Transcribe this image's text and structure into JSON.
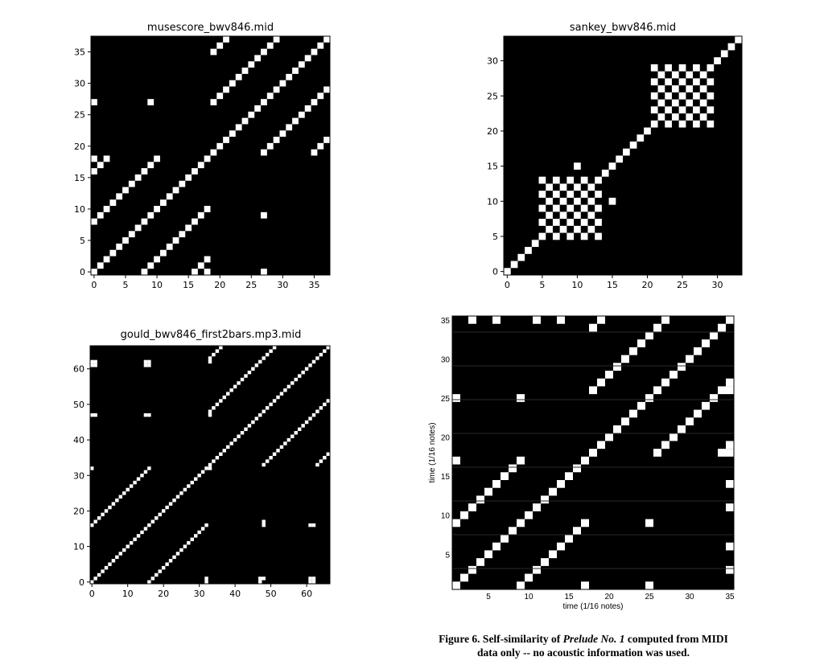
{
  "chart_data": [
    {
      "type": "heatmap",
      "title": "musescore_bwv846.mid",
      "size": 38,
      "xlim": [
        -0.5,
        37.5
      ],
      "ylim": [
        -0.5,
        37.5
      ],
      "xticks": [
        0,
        5,
        10,
        15,
        20,
        25,
        30,
        35
      ],
      "yticks": [
        0,
        5,
        10,
        15,
        20,
        25,
        30,
        35
      ],
      "colors": {
        "cell": "#ffffff",
        "background": "#000000"
      },
      "rules": {
        "diagonal": true,
        "blocks": [
          [
            0,
            18,
            8
          ],
          [
            19,
            37,
            8
          ]
        ],
        "extra": [
          [
            0,
            18
          ],
          [
            18,
            0
          ],
          [
            0,
            27
          ],
          [
            27,
            0
          ],
          [
            9,
            27
          ],
          [
            27,
            9
          ]
        ]
      }
    },
    {
      "type": "heatmap",
      "title": "sankey_bwv846.mid",
      "size": 34,
      "xlim": [
        -0.5,
        33.5
      ],
      "ylim": [
        -0.5,
        33.5
      ],
      "xticks": [
        0,
        5,
        10,
        15,
        20,
        25,
        30
      ],
      "yticks": [
        0,
        5,
        10,
        15,
        20,
        25,
        30
      ],
      "colors": {
        "cell": "#ffffff",
        "background": "#000000"
      },
      "rules": {
        "diagonal": true,
        "blocks": [
          [
            5,
            13,
            2
          ],
          [
            21,
            29,
            2
          ]
        ],
        "extra": [
          [
            10,
            15
          ],
          [
            15,
            10
          ],
          [
            10,
            8
          ],
          [
            8,
            10
          ]
        ]
      }
    },
    {
      "type": "heatmap",
      "title": "gould_bwv846_first2bars.mp3.mid",
      "size": 67,
      "xlim": [
        -0.5,
        66.5
      ],
      "ylim": [
        -0.5,
        66.5
      ],
      "xticks": [
        0,
        10,
        20,
        30,
        40,
        50,
        60
      ],
      "yticks": [
        0,
        10,
        20,
        30,
        40,
        50,
        60
      ],
      "colors": {
        "cell": "#ffffff",
        "background": "#000000"
      },
      "rules": {
        "diagonal": true,
        "blocks": [
          [
            0,
            32,
            16
          ],
          [
            33,
            66,
            15
          ]
        ],
        "extra": [
          [
            0,
            61
          ],
          [
            0,
            62
          ],
          [
            1,
            61
          ],
          [
            1,
            62
          ],
          [
            15,
            61
          ],
          [
            15,
            62
          ],
          [
            16,
            61
          ],
          [
            16,
            62
          ],
          [
            0,
            47
          ],
          [
            1,
            47
          ],
          [
            15,
            47
          ],
          [
            16,
            47
          ],
          [
            48,
            16
          ],
          [
            48,
            17
          ],
          [
            48,
            1
          ],
          [
            61,
            16
          ],
          [
            62,
            16
          ],
          [
            61,
            1
          ],
          [
            62,
            1
          ],
          [
            32,
            0
          ],
          [
            32,
            1
          ],
          [
            47,
            0
          ],
          [
            47,
            1
          ],
          [
            61,
            0
          ],
          [
            62,
            0
          ],
          [
            33,
            32
          ],
          [
            33,
            47
          ],
          [
            33,
            62
          ]
        ]
      }
    },
    {
      "type": "heatmap",
      "title": "",
      "xlabel": "time (1/16 notes)",
      "ylabel": "time (1/16 notes)",
      "size": 36,
      "xlim": [
        0.5,
        35.5
      ],
      "ylim": [
        0.5,
        35.5
      ],
      "xticks": [
        5,
        10,
        15,
        20,
        25,
        30,
        35
      ],
      "yticks": [
        5,
        10,
        15,
        20,
        25,
        30,
        35
      ],
      "colors": {
        "cell": "#ffffff",
        "background": "#000000"
      },
      "rules": {
        "diagonal": true,
        "blocks": [
          [
            1,
            17,
            8
          ],
          [
            18,
            35,
            8
          ]
        ],
        "extra": [
          [
            1,
            17
          ],
          [
            17,
            1
          ],
          [
            1,
            25
          ],
          [
            25,
            1
          ],
          [
            9,
            25
          ],
          [
            25,
            9
          ],
          [
            35,
            3
          ],
          [
            35,
            6
          ],
          [
            35,
            11
          ],
          [
            35,
            14
          ],
          [
            35,
            18
          ],
          [
            35,
            26
          ],
          [
            35,
            35
          ],
          [
            3,
            35
          ],
          [
            6,
            35
          ],
          [
            11,
            35
          ],
          [
            14,
            35
          ]
        ]
      }
    }
  ],
  "caption": {
    "prefix": "Figure 6.  Self-similarity of ",
    "title": "Prelude No. 1",
    "suffix": " computed from MIDI",
    "line2": "data only -- no acoustic information was used."
  }
}
